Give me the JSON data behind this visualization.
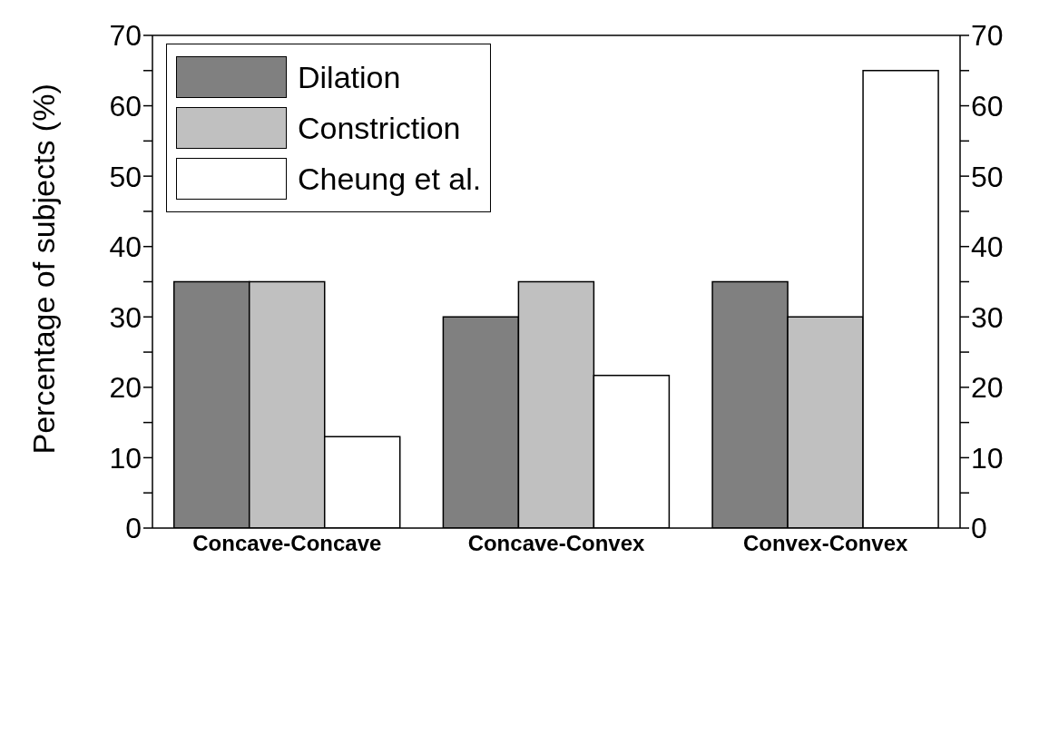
{
  "chart_data": {
    "type": "bar",
    "ylabel": "Percentage of subjects (%)",
    "categories": [
      "Concave-Concave",
      "Concave-Convex",
      "Convex-Convex"
    ],
    "series": [
      {
        "name": "Dilation",
        "color": "#808080",
        "values": [
          35,
          30,
          35
        ]
      },
      {
        "name": "Constriction",
        "color": "#c0c0c0",
        "values": [
          35,
          35,
          30
        ]
      },
      {
        "name": "Cheung et al.",
        "color": "#ffffff",
        "values": [
          13,
          21.7,
          65
        ]
      }
    ],
    "ylim": [
      0,
      70
    ],
    "yticks": [
      0,
      {
        "value": 5,
        "label": null
      },
      10,
      {
        "value": 15,
        "label": null
      },
      20,
      {
        "value": 25,
        "label": null
      },
      30,
      {
        "value": 35,
        "label": null
      },
      40,
      {
        "value": 45,
        "label": null
      },
      50,
      {
        "value": 55,
        "label": null
      },
      60,
      {
        "value": 65,
        "label": null
      },
      70
    ],
    "y2lim": [
      0,
      70
    ],
    "y2ticks": [
      0,
      {
        "value": 5,
        "label": null
      },
      10,
      {
        "value": 15,
        "label": null
      },
      20,
      {
        "value": 25,
        "label": null
      },
      30,
      {
        "value": 35,
        "label": null
      },
      40,
      {
        "value": 45,
        "label": null
      },
      50,
      {
        "value": 55,
        "label": null
      },
      60,
      {
        "value": 65,
        "label": null
      },
      70
    ],
    "grid": false,
    "legend": "top left"
  }
}
